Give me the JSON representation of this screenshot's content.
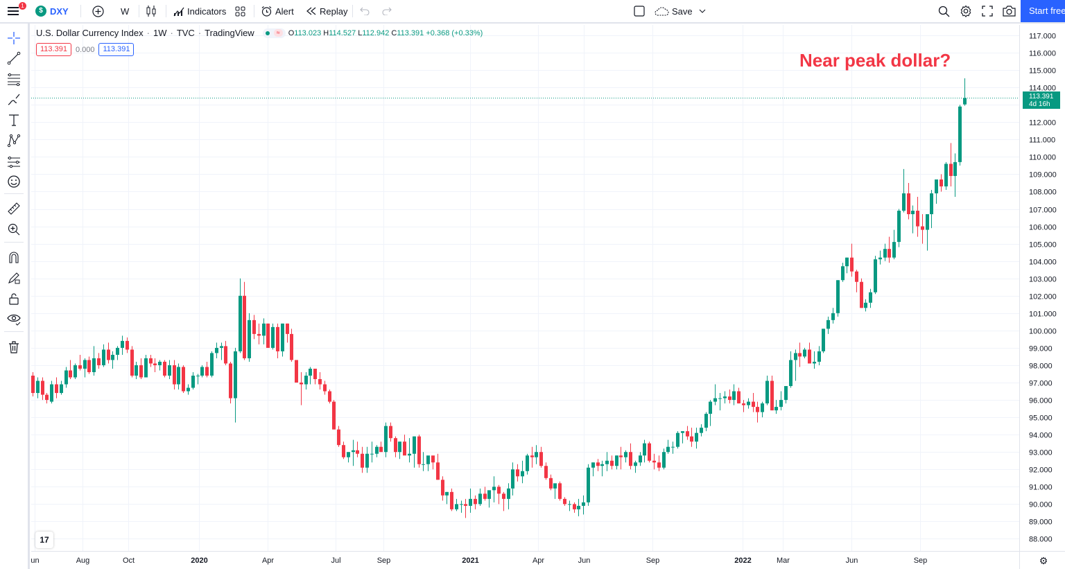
{
  "toolbar": {
    "notif_count": "1",
    "symbol": "DXY",
    "symbol_logo": "$",
    "interval": "W",
    "indicators_label": "Indicators",
    "alert_label": "Alert",
    "replay_label": "Replay",
    "save_label": "Save",
    "start_label": "Start free"
  },
  "legend": {
    "title": "U.S. Dollar Currency Index",
    "interval": "1W",
    "exchange": "TVC",
    "source": "TradingView",
    "o_label": "O",
    "o": "113.023",
    "h_label": "H",
    "h": "114.527",
    "l_label": "L",
    "l": "112.942",
    "c_label": "C",
    "c": "113.391",
    "change": "+0.368 (+0.33%)",
    "bid": "113.391",
    "spread": "0.000",
    "ask": "113.391"
  },
  "annotation": "Near peak dollar?",
  "price_tag": {
    "price": "113.391",
    "countdown": "4d 16h"
  },
  "colors": {
    "up": "#089981",
    "down": "#f23645",
    "accent": "#2962ff"
  },
  "chart_data": {
    "type": "candlestick",
    "title": "U.S. Dollar Currency Index · 1W · TVC",
    "ylim": [
      87.3,
      117.6
    ],
    "yticks": [
      "117.000",
      "116.000",
      "115.000",
      "114.000",
      "113.000",
      "112.000",
      "111.000",
      "110.000",
      "109.000",
      "108.000",
      "107.000",
      "106.000",
      "105.000",
      "104.000",
      "103.000",
      "102.000",
      "101.000",
      "100.000",
      "99.000",
      "98.000",
      "97.000",
      "96.000",
      "95.000",
      "94.000",
      "93.000",
      "92.000",
      "91.000",
      "90.000",
      "89.000",
      "88.000"
    ],
    "xticks": [
      {
        "label": "un",
        "week": 0.4,
        "bold": false
      },
      {
        "label": "Aug",
        "week": 10.6,
        "bold": false
      },
      {
        "label": "Oct",
        "week": 20.4,
        "bold": false
      },
      {
        "label": "2020",
        "week": 35.4,
        "bold": true
      },
      {
        "label": "Apr",
        "week": 49.9,
        "bold": false
      },
      {
        "label": "Jul",
        "week": 64.4,
        "bold": false
      },
      {
        "label": "Sep",
        "week": 74.6,
        "bold": false
      },
      {
        "label": "2021",
        "week": 92.9,
        "bold": true
      },
      {
        "label": "Apr",
        "week": 107.4,
        "bold": false
      },
      {
        "label": "Jun",
        "week": 117.1,
        "bold": false
      },
      {
        "label": "Sep",
        "week": 131.7,
        "bold": false
      },
      {
        "label": "2022",
        "week": 150.9,
        "bold": true
      },
      {
        "label": "Mar",
        "week": 159.4,
        "bold": false
      },
      {
        "label": "Jun",
        "week": 174.0,
        "bold": false
      },
      {
        "label": "Sep",
        "week": 188.6,
        "bold": false
      }
    ],
    "last_price": 113.391,
    "ohlc": [
      [
        97.4,
        97.6,
        96.2,
        96.4
      ],
      [
        96.4,
        97.3,
        96.1,
        97.1
      ],
      [
        97.1,
        97.3,
        96.0,
        96.3
      ],
      [
        96.3,
        96.4,
        95.8,
        96.0
      ],
      [
        95.9,
        97.1,
        95.8,
        96.9
      ],
      [
        96.9,
        97.3,
        96.1,
        96.4
      ],
      [
        96.4,
        97.1,
        96.3,
        96.9
      ],
      [
        96.9,
        97.9,
        96.7,
        97.7
      ],
      [
        97.7,
        98.3,
        97.2,
        97.3
      ],
      [
        97.3,
        98.1,
        97.2,
        98.0
      ],
      [
        98.0,
        98.6,
        97.7,
        97.8
      ],
      [
        97.8,
        98.4,
        97.3,
        98.3
      ],
      [
        98.3,
        98.5,
        97.5,
        97.6
      ],
      [
        97.6,
        99.1,
        97.4,
        98.4
      ],
      [
        98.4,
        98.7,
        97.8,
        98.0
      ],
      [
        98.0,
        99.2,
        97.9,
        98.9
      ],
      [
        98.9,
        99.3,
        98.1,
        98.3
      ],
      [
        98.3,
        98.8,
        97.8,
        98.6
      ],
      [
        98.6,
        99.1,
        98.3,
        99.0
      ],
      [
        99.0,
        99.7,
        98.6,
        99.4
      ],
      [
        99.4,
        99.6,
        98.7,
        98.9
      ],
      [
        98.9,
        99.1,
        97.3,
        97.4
      ],
      [
        97.4,
        98.2,
        97.2,
        98.0
      ],
      [
        98.0,
        98.4,
        97.2,
        97.3
      ],
      [
        97.3,
        98.6,
        97.3,
        98.4
      ],
      [
        98.4,
        98.6,
        97.9,
        98.1
      ],
      [
        98.1,
        98.4,
        97.6,
        98.0
      ],
      [
        98.0,
        98.3,
        97.7,
        98.2
      ],
      [
        98.2,
        98.3,
        97.3,
        97.4
      ],
      [
        97.4,
        98.3,
        97.2,
        98.0
      ],
      [
        98.0,
        98.3,
        96.6,
        96.9
      ],
      [
        96.9,
        98.1,
        96.6,
        97.9
      ],
      [
        97.9,
        98.0,
        96.4,
        96.5
      ],
      [
        96.5,
        96.9,
        96.3,
        96.7
      ],
      [
        96.7,
        97.6,
        96.6,
        97.4
      ],
      [
        97.4,
        97.5,
        96.9,
        97.4
      ],
      [
        97.4,
        98.0,
        97.3,
        97.9
      ],
      [
        97.9,
        98.2,
        97.3,
        97.4
      ],
      [
        97.4,
        98.8,
        97.3,
        98.7
      ],
      [
        98.7,
        99.3,
        98.4,
        99.0
      ],
      [
        99.0,
        99.3,
        98.3,
        99.1
      ],
      [
        99.1,
        99.4,
        98.0,
        98.1
      ],
      [
        98.1,
        98.2,
        95.8,
        96.1
      ],
      [
        96.1,
        99.0,
        94.7,
        98.8
      ],
      [
        98.8,
        103.0,
        98.7,
        102.0
      ],
      [
        102.0,
        102.8,
        98.3,
        98.4
      ],
      [
        98.4,
        101.0,
        98.2,
        100.6
      ],
      [
        100.6,
        100.9,
        99.5,
        99.8
      ],
      [
        99.8,
        100.4,
        99.2,
        99.7
      ],
      [
        99.7,
        100.7,
        99.2,
        100.4
      ],
      [
        100.4,
        100.4,
        99.0,
        99.0
      ],
      [
        99.0,
        100.4,
        98.9,
        100.2
      ],
      [
        100.2,
        100.4,
        98.4,
        98.8
      ],
      [
        98.8,
        100.4,
        98.5,
        100.4
      ],
      [
        100.4,
        100.4,
        99.3,
        99.8
      ],
      [
        99.8,
        100.1,
        98.2,
        98.3
      ],
      [
        98.3,
        98.3,
        97.0,
        97.0
      ],
      [
        97.0,
        97.6,
        95.7,
        96.9
      ],
      [
        96.9,
        97.6,
        96.6,
        97.4
      ],
      [
        97.4,
        97.9,
        96.9,
        97.8
      ],
      [
        97.8,
        97.8,
        96.9,
        97.2
      ],
      [
        97.2,
        97.6,
        96.6,
        96.9
      ],
      [
        96.9,
        97.1,
        96.3,
        96.5
      ],
      [
        96.5,
        96.6,
        95.8,
        95.9
      ],
      [
        95.9,
        96.0,
        94.3,
        94.3
      ],
      [
        94.3,
        94.5,
        93.3,
        93.4
      ],
      [
        93.4,
        93.6,
        92.6,
        92.7
      ],
      [
        92.7,
        93.0,
        92.4,
        93.0
      ],
      [
        93.0,
        93.7,
        92.2,
        93.1
      ],
      [
        93.1,
        93.6,
        92.7,
        92.9
      ],
      [
        92.9,
        93.3,
        91.8,
        92.1
      ],
      [
        92.1,
        93.3,
        91.8,
        92.9
      ],
      [
        92.9,
        93.6,
        92.4,
        92.9
      ],
      [
        92.9,
        93.4,
        92.7,
        93.3
      ],
      [
        93.3,
        93.6,
        93.2,
        93.0
      ],
      [
        93.0,
        94.7,
        92.7,
        94.5
      ],
      [
        94.5,
        94.7,
        93.6,
        93.8
      ],
      [
        93.8,
        93.9,
        92.7,
        93.0
      ],
      [
        93.0,
        93.6,
        92.6,
        93.6
      ],
      [
        93.6,
        94.0,
        92.9,
        92.8
      ],
      [
        92.8,
        93.8,
        92.4,
        92.9
      ],
      [
        92.9,
        93.9,
        92.1,
        93.9
      ],
      [
        93.9,
        94.0,
        92.1,
        92.3
      ],
      [
        92.3,
        93.0,
        91.9,
        92.3
      ],
      [
        92.3,
        92.6,
        91.9,
        92.8
      ],
      [
        92.8,
        92.6,
        92.0,
        92.4
      ],
      [
        92.4,
        92.9,
        91.4,
        91.4
      ],
      [
        91.4,
        91.6,
        90.2,
        90.5
      ],
      [
        90.5,
        90.7,
        90.0,
        90.7
      ],
      [
        90.7,
        90.9,
        89.6,
        89.7
      ],
      [
        89.7,
        90.3,
        89.6,
        90.0
      ],
      [
        90.0,
        90.2,
        89.5,
        90.0
      ],
      [
        90.0,
        90.3,
        89.2,
        89.9
      ],
      [
        89.9,
        90.9,
        89.5,
        90.3
      ],
      [
        90.3,
        90.5,
        89.7,
        90.0
      ],
      [
        90.0,
        90.9,
        89.9,
        90.6
      ],
      [
        90.6,
        91.0,
        90.2,
        90.3
      ],
      [
        90.3,
        90.7,
        89.8,
        90.8
      ],
      [
        90.8,
        91.6,
        90.1,
        91.0
      ],
      [
        91.0,
        91.1,
        90.0,
        90.6
      ],
      [
        90.6,
        90.7,
        89.6,
        90.3
      ],
      [
        90.3,
        91.2,
        89.7,
        90.9
      ],
      [
        90.9,
        92.4,
        90.5,
        92.0
      ],
      [
        92.0,
        92.3,
        91.3,
        91.6
      ],
      [
        91.6,
        92.5,
        91.2,
        91.9
      ],
      [
        91.9,
        92.9,
        91.7,
        92.8
      ],
      [
        92.8,
        93.3,
        92.1,
        92.7
      ],
      [
        92.7,
        93.4,
        92.3,
        93.0
      ],
      [
        93.0,
        93.3,
        92.1,
        92.2
      ],
      [
        92.2,
        92.4,
        91.4,
        91.5
      ],
      [
        91.5,
        91.7,
        90.8,
        90.9
      ],
      [
        90.9,
        91.1,
        90.3,
        91.2
      ],
      [
        91.2,
        91.3,
        90.2,
        90.3
      ],
      [
        90.3,
        90.4,
        89.9,
        90.0
      ],
      [
        90.0,
        90.2,
        89.6,
        90.0
      ],
      [
        90.0,
        90.1,
        89.5,
        89.7
      ],
      [
        89.7,
        90.3,
        89.3,
        89.9
      ],
      [
        89.9,
        90.5,
        89.4,
        90.1
      ],
      [
        90.1,
        92.3,
        89.9,
        92.1
      ],
      [
        92.1,
        92.4,
        91.6,
        92.4
      ],
      [
        92.4,
        92.6,
        91.9,
        92.2
      ],
      [
        92.2,
        92.5,
        91.6,
        92.3
      ],
      [
        92.3,
        93.0,
        91.9,
        92.5
      ],
      [
        92.5,
        92.8,
        92.0,
        92.2
      ],
      [
        92.2,
        92.8,
        92.0,
        92.8
      ],
      [
        92.8,
        93.3,
        92.0,
        92.7
      ],
      [
        92.7,
        93.1,
        92.4,
        93.0
      ],
      [
        93.0,
        93.5,
        92.0,
        92.2
      ],
      [
        92.2,
        92.5,
        91.8,
        92.4
      ],
      [
        92.4,
        93.0,
        92.2,
        92.8
      ],
      [
        92.8,
        93.7,
        92.4,
        93.5
      ],
      [
        93.5,
        93.6,
        92.4,
        92.5
      ],
      [
        92.5,
        92.9,
        92.0,
        92.4
      ],
      [
        92.4,
        92.8,
        91.9,
        92.1
      ],
      [
        92.1,
        93.2,
        92.0,
        93.0
      ],
      [
        93.0,
        93.7,
        92.9,
        93.3
      ],
      [
        93.3,
        93.6,
        92.9,
        93.3
      ],
      [
        93.3,
        94.2,
        93.2,
        94.1
      ],
      [
        94.1,
        94.2,
        93.5,
        94.2
      ],
      [
        94.2,
        94.5,
        93.7,
        93.9
      ],
      [
        93.9,
        94.4,
        93.3,
        93.6
      ],
      [
        93.6,
        94.4,
        93.2,
        94.1
      ],
      [
        94.1,
        94.6,
        93.9,
        94.4
      ],
      [
        94.4,
        95.3,
        94.2,
        95.2
      ],
      [
        95.2,
        96.0,
        94.5,
        95.9
      ],
      [
        95.9,
        96.9,
        95.7,
        96.1
      ],
      [
        96.1,
        96.4,
        95.4,
        96.1
      ],
      [
        96.1,
        96.5,
        95.8,
        96.2
      ],
      [
        96.2,
        96.6,
        95.8,
        96.0
      ],
      [
        96.0,
        96.9,
        95.7,
        96.5
      ],
      [
        96.5,
        96.7,
        95.8,
        95.8
      ],
      [
        95.8,
        96.0,
        95.3,
        95.7
      ],
      [
        95.7,
        96.1,
        95.5,
        95.9
      ],
      [
        95.9,
        96.4,
        95.3,
        95.6
      ],
      [
        95.6,
        95.9,
        94.7,
        95.3
      ],
      [
        95.3,
        95.9,
        95.0,
        95.8
      ],
      [
        95.8,
        97.4,
        95.7,
        97.1
      ],
      [
        97.1,
        97.4,
        95.4,
        95.4
      ],
      [
        95.4,
        96.0,
        95.2,
        95.6
      ],
      [
        95.6,
        96.5,
        95.4,
        96.0
      ],
      [
        96.0,
        96.7,
        95.8,
        96.8
      ],
      [
        96.8,
        98.8,
        96.7,
        98.3
      ],
      [
        98.3,
        98.9,
        97.1,
        98.7
      ],
      [
        98.7,
        99.3,
        97.9,
        98.5
      ],
      [
        98.5,
        99.0,
        98.4,
        98.9
      ],
      [
        98.9,
        99.3,
        98.4,
        98.1
      ],
      [
        98.1,
        98.8,
        97.8,
        98.2
      ],
      [
        98.2,
        99.1,
        98.0,
        98.8
      ],
      [
        98.8,
        100.1,
        98.7,
        100.1
      ],
      [
        100.1,
        100.8,
        99.8,
        100.6
      ],
      [
        100.6,
        101.3,
        100.4,
        101.0
      ],
      [
        101.0,
        102.9,
        100.8,
        102.9
      ],
      [
        102.9,
        103.9,
        102.8,
        103.7
      ],
      [
        103.7,
        104.2,
        103.3,
        104.2
      ],
      [
        104.2,
        105.0,
        103.1,
        103.4
      ],
      [
        103.4,
        103.5,
        102.2,
        102.8
      ],
      [
        102.8,
        103.0,
        101.3,
        101.3
      ],
      [
        101.3,
        101.8,
        101.1,
        101.6
      ],
      [
        101.6,
        102.4,
        101.3,
        102.2
      ],
      [
        102.2,
        104.3,
        102.1,
        104.1
      ],
      [
        104.1,
        104.6,
        103.8,
        104.2
      ],
      [
        104.2,
        105.0,
        104.0,
        104.7
      ],
      [
        104.7,
        105.4,
        103.9,
        104.2
      ],
      [
        104.2,
        105.8,
        104.1,
        105.1
      ],
      [
        105.1,
        107.0,
        104.8,
        106.9
      ],
      [
        106.9,
        109.3,
        106.8,
        107.9
      ],
      [
        107.9,
        108.5,
        106.4,
        106.7
      ],
      [
        106.7,
        107.2,
        105.6,
        106.9
      ],
      [
        106.9,
        107.7,
        105.4,
        106.0
      ],
      [
        106.0,
        106.7,
        105.0,
        105.8
      ],
      [
        105.8,
        106.4,
        104.6,
        106.7
      ],
      [
        106.7,
        108.1,
        105.9,
        107.9
      ],
      [
        107.9,
        108.7,
        107.3,
        108.7
      ],
      [
        108.7,
        109.0,
        108.0,
        108.3
      ],
      [
        108.3,
        109.7,
        108.1,
        109.6
      ],
      [
        109.6,
        110.8,
        108.3,
        108.9
      ],
      [
        108.9,
        110.2,
        107.7,
        109.7
      ],
      [
        109.7,
        113.0,
        109.5,
        112.9
      ],
      [
        113.023,
        114.527,
        112.942,
        113.391
      ]
    ]
  }
}
